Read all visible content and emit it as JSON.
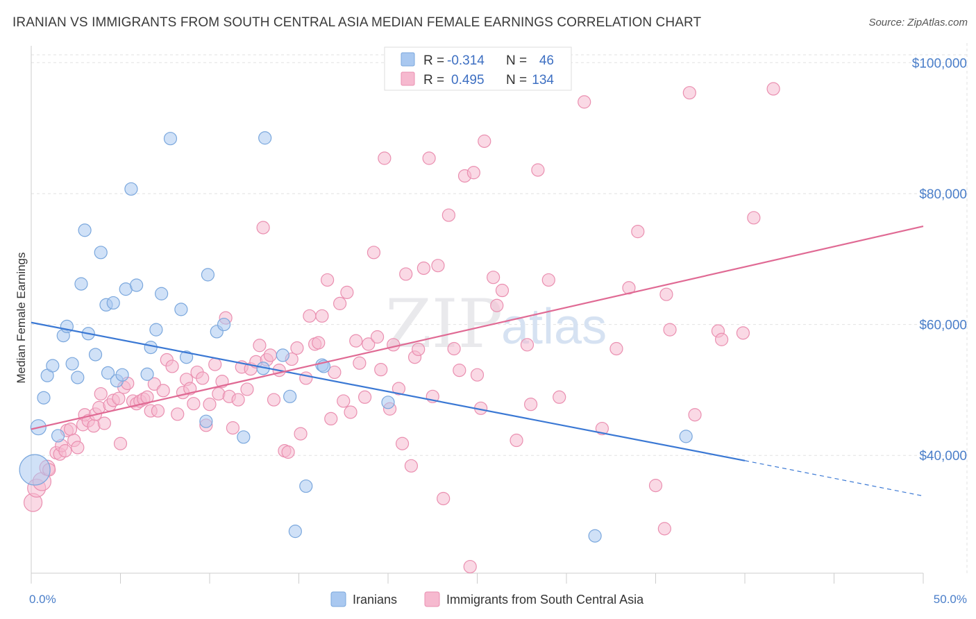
{
  "header": {
    "title": "IRANIAN VS IMMIGRANTS FROM SOUTH CENTRAL ASIA MEDIAN FEMALE EARNINGS CORRELATION CHART",
    "source": "Source: ZipAtlas.com"
  },
  "watermark": {
    "zip": "ZIP",
    "atlas": "atlas"
  },
  "legend": {
    "r_label": "R =",
    "n_label": "N =",
    "rows": [
      {
        "r": "-0.314",
        "n": "46",
        "color": "#a9c8f0"
      },
      {
        "r": "0.495",
        "n": "134",
        "color": "#f6b9cf"
      }
    ]
  },
  "chart_data": {
    "type": "scatter",
    "title": "IRANIAN VS IMMIGRANTS FROM SOUTH CENTRAL ASIA MEDIAN FEMALE EARNINGS CORRELATION CHART",
    "xlabel": "",
    "ylabel": "Median Female Earnings",
    "xlim": [
      0,
      50
    ],
    "ylim": [
      22000,
      103000
    ],
    "x_tick_labels": [
      "0.0%",
      "50.0%"
    ],
    "y_ticks": [
      {
        "value": 40000,
        "label": "$40,000"
      },
      {
        "value": 60000,
        "label": "$60,000"
      },
      {
        "value": 80000,
        "label": "$80,000"
      },
      {
        "value": 100000,
        "label": "$100,000"
      }
    ],
    "grid": true,
    "legend_position": "top-center",
    "series": [
      {
        "name": "Iranians",
        "color": "#a9c8f0",
        "stroke": "#7aa7dd",
        "trend": {
          "x0": 0,
          "y0": 60300,
          "x1": 40,
          "y1": 39200,
          "x_dash_end": 50,
          "y_dash_end": 33800,
          "color": "#3a78d4"
        },
        "points": [
          [
            0.2,
            37800,
            22
          ],
          [
            0.4,
            44300,
            11
          ],
          [
            0.7,
            48800,
            9
          ],
          [
            0.9,
            52200,
            9
          ],
          [
            1.2,
            53700,
            9
          ],
          [
            1.5,
            43000,
            9
          ],
          [
            1.8,
            58300,
            9
          ],
          [
            2.0,
            59700,
            9
          ],
          [
            2.3,
            54000,
            9
          ],
          [
            2.6,
            51900,
            9
          ],
          [
            2.8,
            66200,
            9
          ],
          [
            3.0,
            74400,
            9
          ],
          [
            3.2,
            58600,
            9
          ],
          [
            3.6,
            55400,
            9
          ],
          [
            3.9,
            71000,
            9
          ],
          [
            4.2,
            63000,
            9
          ],
          [
            4.3,
            52600,
            9
          ],
          [
            4.6,
            63300,
            9
          ],
          [
            4.8,
            51400,
            9
          ],
          [
            5.1,
            52300,
            9
          ],
          [
            5.3,
            65400,
            9
          ],
          [
            5.6,
            80700,
            9
          ],
          [
            5.9,
            66000,
            9
          ],
          [
            6.5,
            52400,
            9
          ],
          [
            6.7,
            56500,
            9
          ],
          [
            7.0,
            59200,
            9
          ],
          [
            7.3,
            64700,
            9
          ],
          [
            7.8,
            88400,
            9
          ],
          [
            8.4,
            62300,
            9
          ],
          [
            8.7,
            55000,
            9
          ],
          [
            9.8,
            45200,
            9
          ],
          [
            9.9,
            67600,
            9
          ],
          [
            10.4,
            58900,
            9
          ],
          [
            10.8,
            60000,
            9
          ],
          [
            11.9,
            42800,
            9
          ],
          [
            13.0,
            53300,
            9
          ],
          [
            13.1,
            88500,
            9
          ],
          [
            14.1,
            55300,
            9
          ],
          [
            14.5,
            49000,
            9
          ],
          [
            14.8,
            28400,
            9
          ],
          [
            15.4,
            35300,
            9
          ],
          [
            16.3,
            53800,
            9
          ],
          [
            16.4,
            53600,
            9
          ],
          [
            20.0,
            48100,
            9
          ],
          [
            31.6,
            27700,
            9
          ],
          [
            36.7,
            42900,
            9
          ]
        ]
      },
      {
        "name": "Immigrants from South Central Asia",
        "color": "#f6b9cf",
        "stroke": "#ea8fb0",
        "trend": {
          "x0": 0,
          "y0": 44000,
          "x1": 50,
          "y1": 75000,
          "color": "#e06a94"
        },
        "points": [
          [
            0.1,
            32800,
            13
          ],
          [
            0.3,
            35000,
            13
          ],
          [
            0.6,
            36000,
            13
          ],
          [
            0.9,
            38100,
            11
          ],
          [
            1.0,
            37800,
            9
          ],
          [
            1.4,
            40400,
            9
          ],
          [
            1.6,
            40200,
            9
          ],
          [
            1.7,
            41500,
            9
          ],
          [
            1.9,
            40700,
            9
          ],
          [
            2.0,
            43800,
            9
          ],
          [
            2.2,
            44000,
            9
          ],
          [
            2.4,
            42300,
            9
          ],
          [
            2.6,
            41200,
            9
          ],
          [
            2.9,
            44700,
            9
          ],
          [
            3.0,
            46200,
            9
          ],
          [
            3.2,
            45300,
            9
          ],
          [
            3.5,
            44500,
            9
          ],
          [
            3.6,
            46300,
            9
          ],
          [
            3.8,
            47300,
            9
          ],
          [
            3.9,
            49400,
            9
          ],
          [
            4.1,
            44900,
            9
          ],
          [
            4.4,
            47700,
            9
          ],
          [
            4.6,
            48400,
            9
          ],
          [
            4.9,
            48700,
            9
          ],
          [
            5.0,
            41800,
            9
          ],
          [
            5.2,
            50400,
            9
          ],
          [
            5.4,
            51000,
            9
          ],
          [
            5.7,
            48300,
            9
          ],
          [
            5.9,
            47900,
            9
          ],
          [
            6.1,
            48300,
            9
          ],
          [
            6.3,
            48600,
            9
          ],
          [
            6.5,
            48900,
            9
          ],
          [
            6.7,
            46800,
            9
          ],
          [
            6.9,
            50900,
            9
          ],
          [
            7.1,
            46800,
            9
          ],
          [
            7.4,
            49900,
            9
          ],
          [
            7.6,
            54600,
            9
          ],
          [
            7.9,
            53600,
            9
          ],
          [
            8.2,
            46300,
            9
          ],
          [
            8.5,
            49600,
            9
          ],
          [
            8.7,
            51600,
            9
          ],
          [
            8.9,
            50200,
            9
          ],
          [
            9.1,
            47900,
            9
          ],
          [
            9.3,
            52700,
            9
          ],
          [
            9.6,
            51800,
            9
          ],
          [
            9.8,
            44600,
            9
          ],
          [
            10.0,
            47800,
            9
          ],
          [
            10.3,
            53900,
            9
          ],
          [
            10.5,
            49400,
            9
          ],
          [
            10.7,
            51300,
            9
          ],
          [
            10.9,
            61000,
            9
          ],
          [
            11.1,
            49000,
            9
          ],
          [
            11.3,
            44200,
            9
          ],
          [
            11.6,
            48500,
            9
          ],
          [
            11.8,
            53500,
            9
          ],
          [
            12.1,
            50100,
            9
          ],
          [
            12.3,
            53200,
            9
          ],
          [
            12.6,
            54300,
            9
          ],
          [
            12.8,
            56800,
            9
          ],
          [
            13.0,
            74800,
            9
          ],
          [
            13.2,
            54600,
            9
          ],
          [
            13.4,
            55300,
            9
          ],
          [
            13.6,
            48500,
            9
          ],
          [
            13.9,
            53000,
            9
          ],
          [
            14.2,
            40700,
            9
          ],
          [
            14.4,
            40500,
            9
          ],
          [
            14.6,
            54700,
            9
          ],
          [
            14.9,
            56400,
            9
          ],
          [
            15.1,
            43300,
            9
          ],
          [
            15.4,
            51800,
            9
          ],
          [
            15.6,
            61300,
            9
          ],
          [
            15.9,
            57000,
            9
          ],
          [
            16.1,
            57200,
            9
          ],
          [
            16.3,
            61300,
            9
          ],
          [
            16.6,
            66800,
            9
          ],
          [
            16.8,
            45600,
            9
          ],
          [
            17.0,
            52700,
            9
          ],
          [
            17.3,
            63200,
            9
          ],
          [
            17.5,
            48300,
            9
          ],
          [
            17.7,
            64900,
            9
          ],
          [
            17.9,
            46600,
            9
          ],
          [
            18.2,
            57500,
            9
          ],
          [
            18.4,
            54100,
            9
          ],
          [
            18.7,
            48900,
            9
          ],
          [
            18.9,
            57000,
            9
          ],
          [
            19.2,
            71000,
            9
          ],
          [
            19.4,
            58100,
            9
          ],
          [
            19.6,
            53100,
            9
          ],
          [
            19.8,
            85400,
            9
          ],
          [
            20.1,
            47100,
            9
          ],
          [
            20.3,
            56900,
            9
          ],
          [
            20.6,
            50200,
            9
          ],
          [
            20.8,
            41800,
            9
          ],
          [
            21.0,
            67700,
            9
          ],
          [
            21.3,
            38400,
            9
          ],
          [
            21.5,
            55000,
            9
          ],
          [
            21.7,
            56200,
            9
          ],
          [
            22.0,
            68600,
            9
          ],
          [
            22.3,
            85400,
            9
          ],
          [
            22.5,
            49000,
            9
          ],
          [
            22.8,
            69000,
            9
          ],
          [
            23.1,
            33400,
            9
          ],
          [
            23.4,
            76700,
            9
          ],
          [
            23.7,
            56300,
            9
          ],
          [
            24.0,
            53000,
            9
          ],
          [
            24.3,
            82700,
            9
          ],
          [
            24.6,
            23000,
            9
          ],
          [
            24.8,
            83200,
            9
          ],
          [
            25.0,
            52300,
            9
          ],
          [
            25.2,
            47200,
            9
          ],
          [
            25.4,
            88000,
            9
          ],
          [
            25.9,
            67200,
            9
          ],
          [
            26.1,
            62900,
            9
          ],
          [
            26.4,
            65200,
            9
          ],
          [
            27.2,
            42300,
            9
          ],
          [
            27.8,
            56900,
            9
          ],
          [
            28.0,
            47800,
            9
          ],
          [
            28.4,
            83600,
            9
          ],
          [
            29.0,
            66800,
            9
          ],
          [
            29.6,
            48900,
            9
          ],
          [
            31.0,
            94000,
            9
          ],
          [
            32.0,
            44100,
            9
          ],
          [
            33.5,
            65600,
            9
          ],
          [
            34.0,
            74200,
            9
          ],
          [
            35.0,
            35400,
            9
          ],
          [
            35.5,
            28800,
            9
          ],
          [
            35.6,
            64600,
            9
          ],
          [
            35.8,
            59200,
            9
          ],
          [
            36.9,
            95400,
            9
          ],
          [
            37.2,
            46200,
            9
          ],
          [
            38.5,
            59000,
            9
          ],
          [
            38.7,
            57700,
            9
          ],
          [
            39.9,
            58700,
            9
          ],
          [
            40.5,
            76300,
            9
          ],
          [
            41.6,
            96000,
            9
          ],
          [
            32.8,
            56300,
            9
          ]
        ]
      }
    ]
  },
  "bottom_legend": {
    "items": [
      {
        "label": "Iranians",
        "color": "#a9c8f0"
      },
      {
        "label": "Immigrants from South Central Asia",
        "color": "#f6b9cf"
      }
    ]
  }
}
